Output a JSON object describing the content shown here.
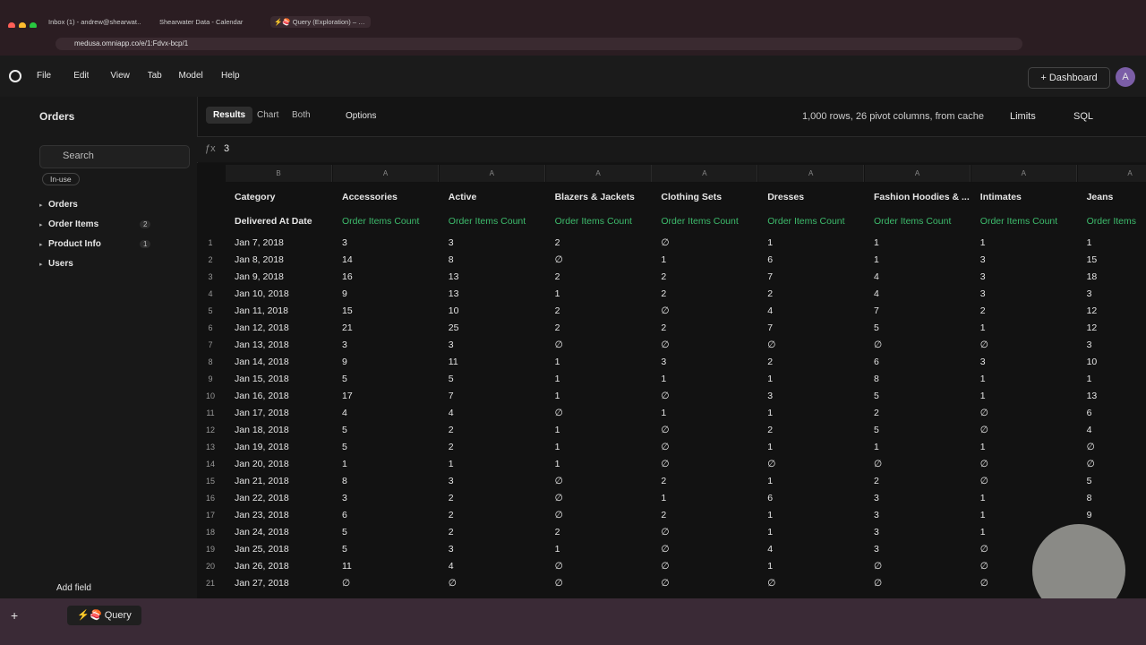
{
  "browser": {
    "tabs": [
      "Inbox (1) - andrew@shearwat…",
      "Shearwater Data - Calendar",
      "⚡🍣 Query (Exploration) – …"
    ],
    "url": "medusa.omniapp.co/e/1:Fdvx-bcp/1"
  },
  "menu": [
    "File",
    "Edit",
    "View",
    "Tab",
    "Model",
    "Help"
  ],
  "header": {
    "dashboard": "Dashboard",
    "avatar": "A"
  },
  "sidebar": {
    "topic": "Orders",
    "search": "Search",
    "filter": "In-use",
    "tree": [
      {
        "label": "Orders"
      },
      {
        "label": "Order Items",
        "count": 2
      },
      {
        "label": "Product Info",
        "count": 1
      },
      {
        "label": "Users"
      }
    ],
    "add_field": "Add field"
  },
  "toolbar": {
    "tabs": [
      "Results",
      "Chart",
      "Both"
    ],
    "options": "Options",
    "status": "1,000 rows, 26 pivot columns, from cache",
    "limits": "Limits",
    "sql": "SQL"
  },
  "formula": "3",
  "table": {
    "letters": [
      "B",
      "A",
      "A",
      "A",
      "A",
      "A",
      "A",
      "A",
      "A"
    ],
    "pivot_header": [
      "Category",
      "Accessories",
      "Active",
      "Blazers & Jackets",
      "Clothing Sets",
      "Dresses",
      "Fashion Hoodies & ...",
      "Intimates",
      "Jeans"
    ],
    "columns": [
      "Delivered At Date",
      "Order Items Count",
      "Order Items Count",
      "Order Items Count",
      "Order Items Count",
      "Order Items Count",
      "Order Items Count",
      "Order Items Count",
      "Order Items"
    ],
    "rows": [
      {
        "n": 1,
        "cells": [
          "Jan 7, 2018",
          3,
          3,
          2,
          "∅",
          1,
          1,
          1,
          1
        ]
      },
      {
        "n": 2,
        "cells": [
          "Jan 8, 2018",
          14,
          8,
          "∅",
          1,
          6,
          1,
          3,
          15
        ]
      },
      {
        "n": 3,
        "cells": [
          "Jan 9, 2018",
          16,
          13,
          2,
          2,
          7,
          4,
          3,
          18
        ]
      },
      {
        "n": 4,
        "cells": [
          "Jan 10, 2018",
          9,
          13,
          1,
          2,
          2,
          4,
          3,
          3
        ]
      },
      {
        "n": 5,
        "cells": [
          "Jan 11, 2018",
          15,
          10,
          2,
          "∅",
          4,
          7,
          2,
          12
        ]
      },
      {
        "n": 6,
        "cells": [
          "Jan 12, 2018",
          21,
          25,
          2,
          2,
          7,
          5,
          1,
          12
        ]
      },
      {
        "n": 7,
        "cells": [
          "Jan 13, 2018",
          3,
          3,
          "∅",
          "∅",
          "∅",
          "∅",
          "∅",
          3
        ]
      },
      {
        "n": 8,
        "cells": [
          "Jan 14, 2018",
          9,
          11,
          1,
          3,
          2,
          6,
          3,
          10
        ]
      },
      {
        "n": 9,
        "cells": [
          "Jan 15, 2018",
          5,
          5,
          1,
          1,
          1,
          8,
          1,
          1
        ]
      },
      {
        "n": 10,
        "cells": [
          "Jan 16, 2018",
          17,
          7,
          1,
          "∅",
          3,
          5,
          1,
          13
        ]
      },
      {
        "n": 11,
        "cells": [
          "Jan 17, 2018",
          4,
          4,
          "∅",
          1,
          1,
          2,
          "∅",
          6
        ]
      },
      {
        "n": 12,
        "cells": [
          "Jan 18, 2018",
          5,
          2,
          1,
          "∅",
          2,
          5,
          "∅",
          4
        ]
      },
      {
        "n": 13,
        "cells": [
          "Jan 19, 2018",
          5,
          2,
          1,
          "∅",
          1,
          1,
          1,
          "∅"
        ]
      },
      {
        "n": 14,
        "cells": [
          "Jan 20, 2018",
          1,
          1,
          1,
          "∅",
          "∅",
          "∅",
          "∅",
          "∅"
        ]
      },
      {
        "n": 15,
        "cells": [
          "Jan 21, 2018",
          8,
          3,
          "∅",
          2,
          1,
          2,
          "∅",
          5
        ]
      },
      {
        "n": 16,
        "cells": [
          "Jan 22, 2018",
          3,
          2,
          "∅",
          1,
          6,
          3,
          1,
          8
        ]
      },
      {
        "n": 17,
        "cells": [
          "Jan 23, 2018",
          6,
          2,
          "∅",
          2,
          1,
          3,
          1,
          9
        ]
      },
      {
        "n": 18,
        "cells": [
          "Jan 24, 2018",
          5,
          2,
          2,
          "∅",
          1,
          3,
          1
        ]
      },
      {
        "n": 19,
        "cells": [
          "Jan 25, 2018",
          5,
          3,
          1,
          "∅",
          4,
          3,
          "∅"
        ]
      },
      {
        "n": 20,
        "cells": [
          "Jan 26, 2018",
          11,
          4,
          "∅",
          "∅",
          1,
          "∅",
          "∅"
        ]
      },
      {
        "n": 21,
        "cells": [
          "Jan 27, 2018",
          "∅",
          "∅",
          "∅",
          "∅",
          "∅",
          "∅",
          "∅"
        ]
      }
    ]
  },
  "footer": {
    "tab": "⚡🍣 Query"
  }
}
